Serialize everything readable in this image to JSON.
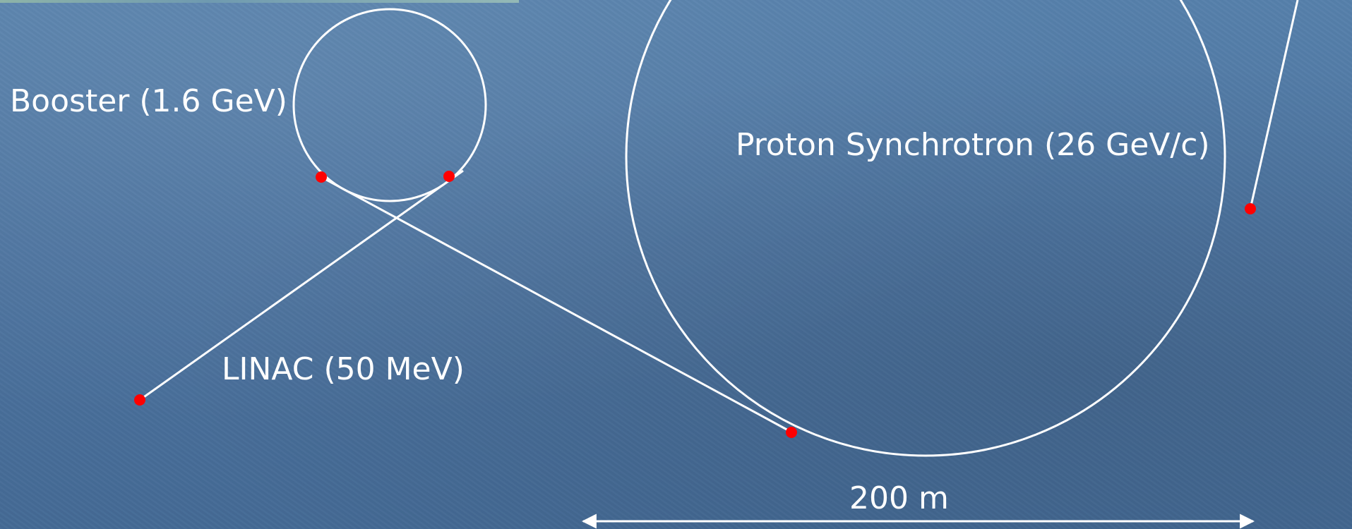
{
  "labels": {
    "booster": "Booster (1.6 GeV)",
    "proton_synchrotron": "Proton Synchrotron (26 GeV/c)",
    "linac": "LINAC (50 MeV)",
    "scale_bar": "200 m"
  },
  "colors": {
    "background": "#4f76a0",
    "lines": "#ffffff",
    "markers": "#ff0000"
  }
}
